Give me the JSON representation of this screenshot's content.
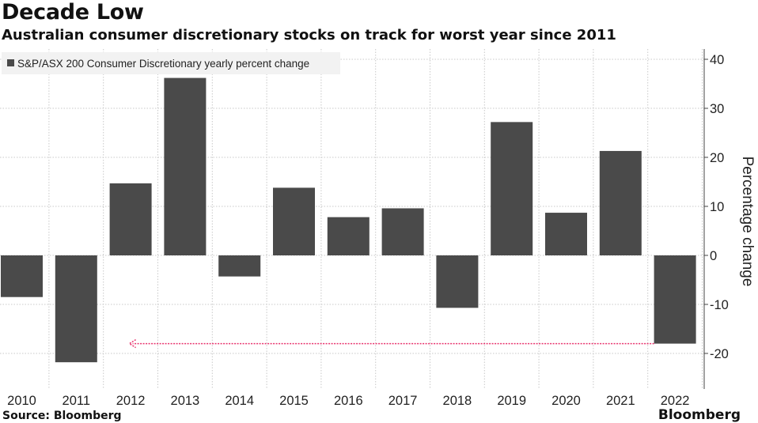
{
  "title": "Decade Low",
  "subtitle": "Australian consumer discretionary stocks on track for worst year since 2011",
  "source": "Source: Bloomberg",
  "brand": "Bloomberg",
  "colors": {
    "bar": "#4a4a4a",
    "grid": "#c8c8c8",
    "arrow": "#e8336d",
    "legend_bg": "#f2f2f2"
  },
  "chart_data": {
    "type": "bar",
    "categories": [
      "2010",
      "2011",
      "2012",
      "2013",
      "2014",
      "2015",
      "2016",
      "2017",
      "2018",
      "2019",
      "2020",
      "2021",
      "2022"
    ],
    "series": [
      {
        "name": "S&P/ASX 200 Consumer Discretionary yearly percent change",
        "values": [
          -8.5,
          -21.8,
          14.7,
          36.2,
          -4.3,
          13.8,
          7.8,
          9.6,
          -10.7,
          27.2,
          8.7,
          21.3,
          -18
        ]
      }
    ],
    "ylabel": "Percentage change",
    "xlabel": "",
    "ylim": [
      -25,
      42
    ],
    "yticks": [
      40,
      30,
      20,
      10,
      0,
      -10,
      -20
    ],
    "ytick_labels": [
      "40",
      "30",
      "20",
      "10",
      "0",
      "-10",
      "-20"
    ],
    "legend": {
      "label": "S&P/ASX 200 Consumer Discretionary yearly percent change",
      "position": "top-left"
    },
    "grid": true,
    "annotation": {
      "type": "arrow",
      "value": -18,
      "from": "2022",
      "to": "2012"
    }
  }
}
